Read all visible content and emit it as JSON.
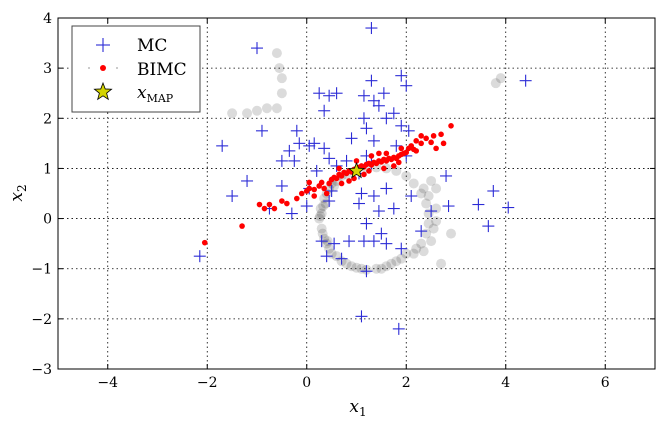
{
  "chart_data": {
    "type": "scatter",
    "title": "",
    "xlabel": "x",
    "xlabel_sub": "1",
    "ylabel": "x",
    "ylabel_sub": "2",
    "xlim": [
      -5,
      7
    ],
    "ylim": [
      -3,
      4
    ],
    "xticks": [
      -4,
      -2,
      0,
      2,
      4,
      6
    ],
    "yticks": [
      -3,
      -2,
      -1,
      0,
      1,
      2,
      3,
      4
    ],
    "xtick_labels": [
      "−4",
      "−2",
      "0",
      "2",
      "4",
      "6"
    ],
    "ytick_labels": [
      "−3",
      "−2",
      "−1",
      "0",
      "1",
      "2",
      "3",
      "4"
    ],
    "grid": true,
    "legend_position": "top-left",
    "colors": {
      "mc": "#2b2bd6",
      "bimc": "#ff0000",
      "map": "#d4d400",
      "density": "#000000"
    },
    "legend": [
      {
        "key": "mc",
        "label": "MC",
        "marker": "plus"
      },
      {
        "key": "bimc",
        "label": "BIMC",
        "marker": "dot"
      },
      {
        "key": "map",
        "label": "x",
        "sub": "MAP",
        "marker": "star"
      }
    ],
    "series": [
      {
        "key": "density",
        "points": [
          [
            1.6,
            -0.95
          ],
          [
            1.4,
            -1.0
          ],
          [
            1.2,
            -1.02
          ],
          [
            1.0,
            -0.98
          ],
          [
            1.8,
            -0.85
          ],
          [
            2.0,
            -0.7
          ],
          [
            0.8,
            -0.9
          ],
          [
            0.6,
            -0.75
          ],
          [
            0.45,
            -0.6
          ],
          [
            0.35,
            -0.4
          ],
          [
            0.3,
            -0.2
          ],
          [
            0.25,
            0.0
          ],
          [
            0.28,
            0.2
          ],
          [
            0.35,
            0.4
          ],
          [
            0.45,
            0.6
          ],
          [
            0.6,
            0.75
          ],
          [
            0.8,
            0.88
          ],
          [
            1.0,
            0.95
          ],
          [
            1.2,
            1.0
          ],
          [
            1.4,
            1.02
          ],
          [
            1.6,
            1.0
          ],
          [
            1.8,
            0.95
          ],
          [
            2.0,
            0.85
          ],
          [
            2.15,
            0.7
          ],
          [
            2.3,
            0.5
          ],
          [
            2.4,
            0.3
          ],
          [
            2.45,
            0.1
          ],
          [
            2.45,
            -0.1
          ],
          [
            2.4,
            -0.3
          ],
          [
            2.3,
            -0.5
          ],
          [
            2.15,
            -0.7
          ],
          [
            0.4,
            0.5
          ],
          [
            0.5,
            0.7
          ],
          [
            0.7,
            0.85
          ],
          [
            0.3,
            0.1
          ],
          [
            0.32,
            -0.3
          ],
          [
            0.5,
            -0.7
          ],
          [
            0.7,
            -0.85
          ],
          [
            2.6,
            0.2
          ],
          [
            2.55,
            -0.2
          ],
          [
            2.5,
            -0.45
          ],
          [
            2.35,
            -0.65
          ],
          [
            0.55,
            0.65
          ],
          [
            0.38,
            0.3
          ],
          [
            0.27,
            0.05
          ],
          [
            0.4,
            -0.5
          ],
          [
            0.9,
            -0.95
          ],
          [
            1.1,
            -1.0
          ],
          [
            1.5,
            -1.0
          ],
          [
            1.7,
            -0.9
          ],
          [
            1.9,
            -0.8
          ],
          [
            2.2,
            -0.6
          ],
          [
            2.45,
            0.45
          ],
          [
            2.35,
            0.6
          ],
          [
            2.6,
            -0.05
          ],
          [
            0.33,
            0.25
          ],
          [
            0.42,
            -0.45
          ],
          [
            -0.6,
            2.2
          ],
          [
            -0.5,
            2.5
          ],
          [
            -0.5,
            2.8
          ],
          [
            -0.55,
            3.0
          ],
          [
            -0.8,
            2.2
          ],
          [
            -1.0,
            2.15
          ],
          [
            -1.2,
            2.1
          ],
          [
            -0.6,
            3.3
          ],
          [
            -1.5,
            2.1
          ],
          [
            3.8,
            2.7
          ],
          [
            3.9,
            2.8
          ],
          [
            2.7,
            -0.9
          ],
          [
            2.9,
            -0.3
          ],
          [
            2.6,
            0.6
          ],
          [
            2.5,
            0.75
          ]
        ]
      },
      {
        "key": "mc",
        "points": [
          [
            -1.0,
            3.4
          ],
          [
            1.3,
            3.8
          ],
          [
            1.3,
            2.75
          ],
          [
            1.9,
            2.85
          ],
          [
            2.0,
            2.65
          ],
          [
            4.4,
            2.75
          ],
          [
            0.25,
            2.5
          ],
          [
            0.45,
            2.45
          ],
          [
            0.6,
            2.5
          ],
          [
            1.15,
            2.45
          ],
          [
            1.35,
            2.35
          ],
          [
            1.55,
            2.5
          ],
          [
            1.6,
            2.0
          ],
          [
            1.75,
            2.1
          ],
          [
            1.9,
            1.85
          ],
          [
            2.05,
            1.75
          ],
          [
            0.35,
            2.15
          ],
          [
            -0.2,
            1.75
          ],
          [
            -0.9,
            1.75
          ],
          [
            -1.7,
            1.45
          ],
          [
            -0.15,
            1.5
          ],
          [
            0.05,
            1.45
          ],
          [
            0.15,
            1.5
          ],
          [
            0.35,
            1.4
          ],
          [
            0.45,
            1.2
          ],
          [
            1.2,
            1.8
          ],
          [
            1.35,
            1.55
          ],
          [
            1.2,
            1.25
          ],
          [
            1.3,
            1.1
          ],
          [
            -0.35,
            1.35
          ],
          [
            -0.25,
            1.15
          ],
          [
            -0.5,
            1.15
          ],
          [
            0.6,
            1.05
          ],
          [
            0.8,
            1.15
          ],
          [
            1.8,
            1.45
          ],
          [
            2.0,
            1.25
          ],
          [
            2.8,
            0.85
          ],
          [
            -1.2,
            0.75
          ],
          [
            -1.5,
            0.45
          ],
          [
            -0.5,
            0.65
          ],
          [
            0.05,
            0.6
          ],
          [
            0.5,
            0.55
          ],
          [
            1.1,
            0.5
          ],
          [
            1.35,
            0.45
          ],
          [
            1.6,
            0.6
          ],
          [
            2.5,
            0.15
          ],
          [
            2.85,
            0.25
          ],
          [
            3.75,
            0.55
          ],
          [
            3.45,
            0.28
          ],
          [
            4.05,
            0.22
          ],
          [
            3.65,
            -0.15
          ],
          [
            -0.75,
            0.2
          ],
          [
            -0.3,
            0.1
          ],
          [
            0.45,
            0.35
          ],
          [
            1.05,
            0.3
          ],
          [
            1.45,
            0.15
          ],
          [
            1.75,
            0.2
          ],
          [
            1.2,
            -0.1
          ],
          [
            1.5,
            -0.3
          ],
          [
            0.55,
            -0.5
          ],
          [
            0.85,
            -0.45
          ],
          [
            1.15,
            -0.45
          ],
          [
            1.35,
            -0.45
          ],
          [
            1.6,
            -0.5
          ],
          [
            1.9,
            -0.6
          ],
          [
            0.4,
            -0.75
          ],
          [
            -2.15,
            -0.75
          ],
          [
            0.3,
            -0.45
          ],
          [
            0.7,
            -0.8
          ],
          [
            1.2,
            -1.05
          ],
          [
            1.1,
            -1.95
          ],
          [
            1.85,
            -2.2
          ],
          [
            0.9,
            1.6
          ],
          [
            1.15,
            2.0
          ],
          [
            1.45,
            2.25
          ],
          [
            0.0,
            0.25
          ],
          [
            2.3,
            -0.25
          ],
          [
            0.2,
            0.95
          ],
          [
            2.1,
            0.45
          ],
          [
            1.05,
            0.9
          ]
        ]
      },
      {
        "key": "bimc",
        "points": [
          [
            -2.05,
            -0.48
          ],
          [
            -1.3,
            -0.15
          ],
          [
            -0.85,
            0.2
          ],
          [
            -0.75,
            0.28
          ],
          [
            -0.5,
            0.35
          ],
          [
            -0.1,
            0.5
          ],
          [
            0.0,
            0.55
          ],
          [
            0.05,
            0.6
          ],
          [
            0.15,
            0.58
          ],
          [
            0.25,
            0.65
          ],
          [
            0.3,
            0.72
          ],
          [
            0.35,
            0.6
          ],
          [
            0.45,
            0.7
          ],
          [
            0.5,
            0.78
          ],
          [
            0.55,
            0.82
          ],
          [
            0.6,
            0.8
          ],
          [
            0.65,
            0.88
          ],
          [
            0.7,
            0.85
          ],
          [
            0.75,
            0.92
          ],
          [
            0.8,
            0.9
          ],
          [
            0.85,
            0.95
          ],
          [
            0.9,
            0.93
          ],
          [
            0.95,
            0.98
          ],
          [
            1.0,
            1.0
          ],
          [
            1.05,
            1.02
          ],
          [
            1.1,
            1.05
          ],
          [
            1.15,
            1.03
          ],
          [
            1.2,
            1.08
          ],
          [
            1.25,
            1.1
          ],
          [
            1.3,
            1.07
          ],
          [
            1.35,
            1.12
          ],
          [
            1.4,
            1.1
          ],
          [
            1.45,
            1.15
          ],
          [
            1.5,
            1.13
          ],
          [
            1.55,
            1.18
          ],
          [
            1.6,
            1.15
          ],
          [
            1.65,
            1.2
          ],
          [
            1.7,
            1.18
          ],
          [
            1.75,
            1.22
          ],
          [
            1.8,
            1.2
          ],
          [
            1.85,
            1.25
          ],
          [
            1.9,
            1.28
          ],
          [
            1.95,
            1.3
          ],
          [
            2.0,
            1.32
          ],
          [
            2.05,
            1.4
          ],
          [
            2.1,
            1.45
          ],
          [
            2.15,
            1.38
          ],
          [
            2.2,
            1.35
          ],
          [
            2.3,
            1.5
          ],
          [
            2.5,
            1.52
          ],
          [
            2.55,
            1.65
          ],
          [
            2.7,
            1.68
          ],
          [
            2.9,
            1.85
          ],
          [
            2.3,
            1.65
          ],
          [
            0.15,
            0.45
          ],
          [
            0.4,
            0.5
          ],
          [
            0.7,
            0.7
          ],
          [
            0.95,
            0.8
          ],
          [
            1.25,
            0.95
          ],
          [
            1.55,
            1.0
          ],
          [
            1.85,
            1.12
          ],
          [
            0.65,
            1.0
          ],
          [
            1.0,
            1.15
          ],
          [
            1.3,
            1.25
          ],
          [
            1.6,
            1.3
          ],
          [
            1.9,
            1.4
          ],
          [
            2.2,
            1.55
          ],
          [
            -0.2,
            0.4
          ],
          [
            -0.4,
            0.3
          ],
          [
            -0.65,
            0.2
          ],
          [
            -0.95,
            0.28
          ],
          [
            0.05,
            0.72
          ],
          [
            2.6,
            1.4
          ],
          [
            1.75,
            1.05
          ],
          [
            1.45,
            1.3
          ],
          [
            2.4,
            1.6
          ],
          [
            2.75,
            1.5
          ],
          [
            0.85,
            0.75
          ],
          [
            1.15,
            0.88
          ]
        ]
      },
      {
        "key": "map",
        "points": [
          [
            1.0,
            0.95
          ]
        ]
      }
    ]
  }
}
